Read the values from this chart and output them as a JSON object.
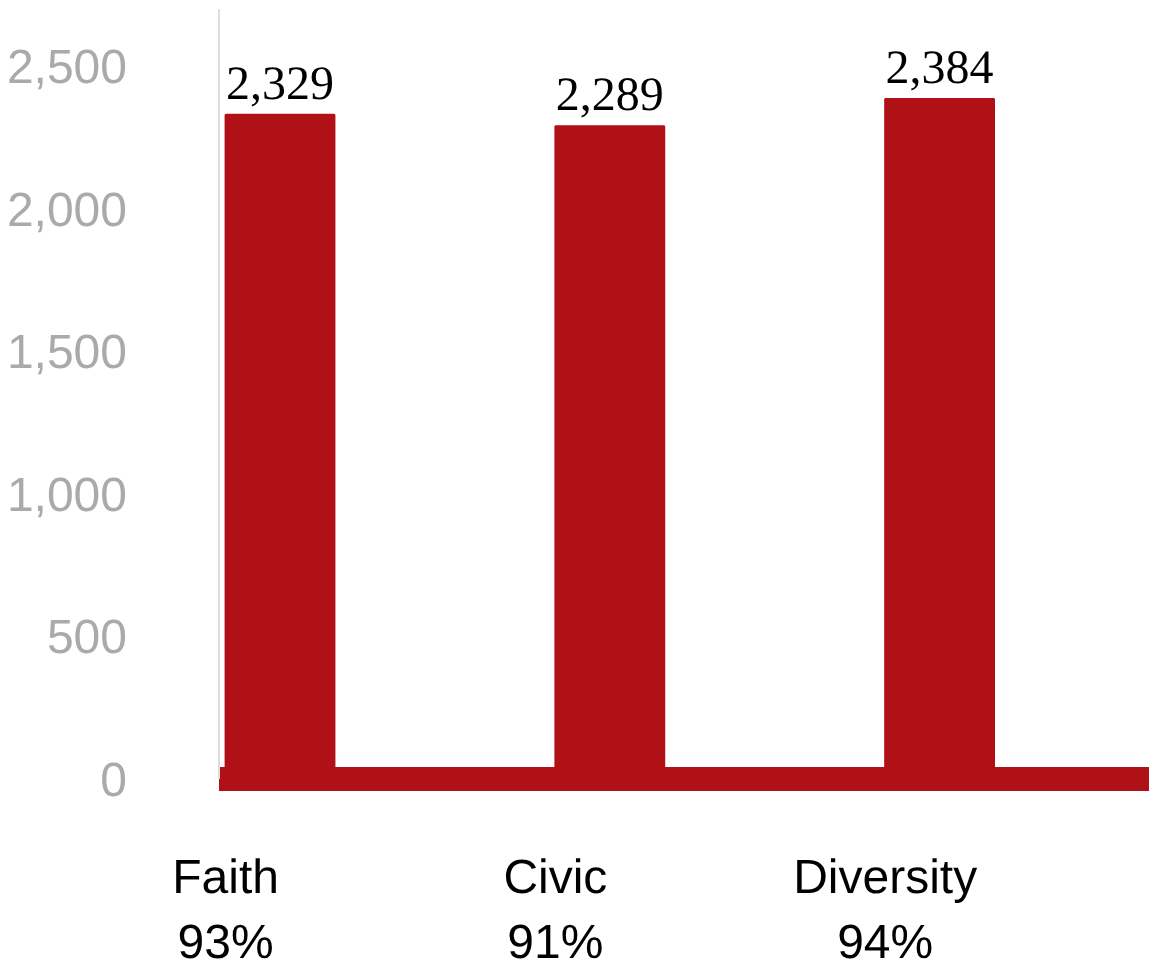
{
  "chart_data": {
    "type": "bar",
    "categories": [
      "Faith\n93%",
      "Civic\n91%",
      "Diversity\n94%"
    ],
    "values": [
      2329,
      2289,
      2384
    ],
    "color": "#b01116",
    "value_labels": [
      "2,329",
      "2,289",
      "2,384"
    ],
    "ylim": [
      0,
      2700
    ],
    "yticks": [
      0,
      {
        "value": 500,
        "label": "500"
      },
      {
        "value": 1000,
        "label": "1,000"
      },
      {
        "value": 1500,
        "label": "1,500"
      },
      {
        "value": 2000,
        "label": "2,000"
      },
      {
        "value": 2500,
        "label": "2,500"
      }
    ],
    "grid": false
  }
}
